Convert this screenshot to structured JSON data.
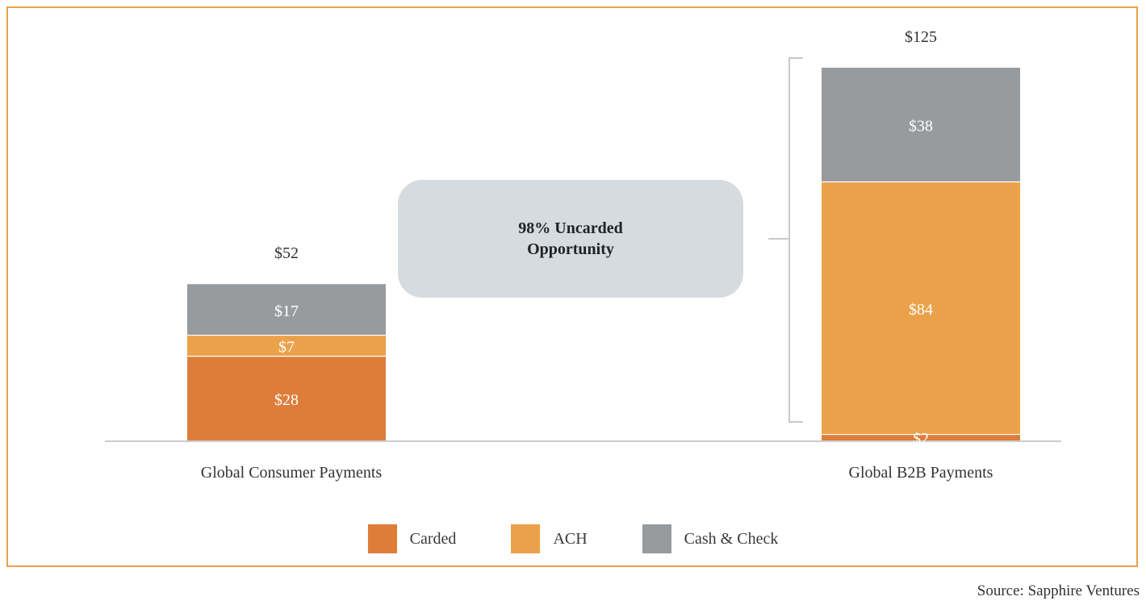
{
  "chart_data": {
    "type": "bar",
    "stacked": true,
    "categories": [
      "Global Consumer Payments",
      "Global B2B Payments"
    ],
    "series": [
      {
        "name": "Carded",
        "values": [
          28,
          2
        ],
        "labels": [
          "$28",
          "$2"
        ],
        "color": "#de7d3a"
      },
      {
        "name": "ACH",
        "values": [
          7,
          84
        ],
        "labels": [
          "$7",
          "$84"
        ],
        "color": "#eba14a"
      },
      {
        "name": "Cash & Check",
        "values": [
          17,
          38
        ],
        "labels": [
          "$17",
          "$38"
        ],
        "color": "#989b9e"
      }
    ],
    "totals": [
      "$52",
      "$125"
    ],
    "ylim": [
      0,
      128
    ],
    "grid": false,
    "legend": "bottom-center",
    "annotation": {
      "text_line1": "98% Uncarded",
      "text_line2": "Opportunity"
    }
  },
  "colors": {
    "frame": "#eba14a",
    "callout_bg": "#d6dbdf",
    "bracket": "#c9c9c9",
    "baseline": "#cccccc"
  },
  "source": "Source: Sapphire Ventures"
}
